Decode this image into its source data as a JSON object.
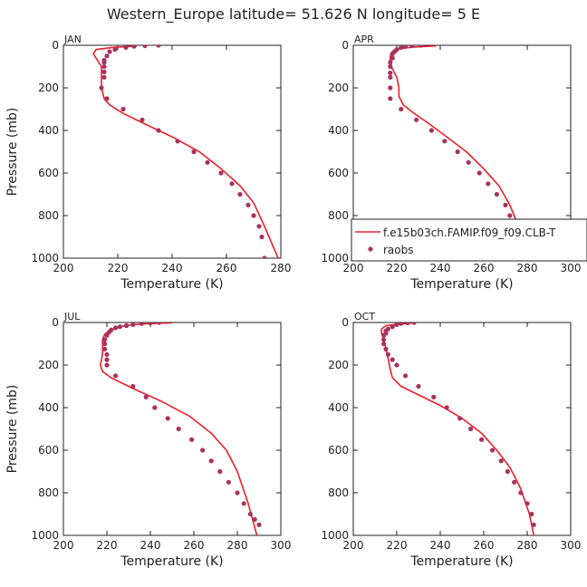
{
  "figure_title": "Western_Europe  latitude= 51.626 N longitude= 5 E",
  "legend": {
    "model_label": "f.e15b03ch.FAMIP.f09_f09.CLB-T",
    "obs_label": "raobs"
  },
  "colors": {
    "model_line": "#e8202a",
    "obs_points": "#a8325e",
    "axis": "#222222"
  },
  "chart_data": [
    {
      "type": "line",
      "panel": "JAN",
      "xlabel": "Temperature (K)",
      "ylabel": "Pressure (mb)",
      "xlim": [
        200,
        280
      ],
      "ylim": [
        1000,
        0
      ],
      "xticks": [
        200,
        220,
        240,
        260,
        280
      ],
      "yticks": [
        0,
        200,
        400,
        600,
        800,
        1000
      ],
      "series": [
        {
          "name": "f.e15b03ch.FAMIP.f09_f09.CLB-T",
          "kind": "line",
          "x": [
            227,
            218,
            212,
            211,
            212,
            214,
            214,
            214,
            215,
            217,
            222,
            230,
            240,
            250,
            258,
            265,
            270,
            274,
            279
          ],
          "y": [
            3,
            10,
            20,
            40,
            60,
            100,
            150,
            200,
            250,
            280,
            320,
            370,
            430,
            500,
            580,
            660,
            740,
            850,
            1000
          ]
        },
        {
          "name": "raobs",
          "kind": "scatter",
          "x": [
            235,
            230,
            226,
            223,
            219,
            217,
            216,
            215,
            215,
            215,
            215,
            215,
            214,
            216,
            222,
            229,
            235,
            242,
            248,
            253,
            258,
            262,
            265,
            268,
            270,
            272,
            273,
            274
          ],
          "y": [
            0,
            2,
            5,
            10,
            20,
            30,
            50,
            70,
            80,
            100,
            125,
            150,
            200,
            250,
            300,
            350,
            400,
            450,
            500,
            550,
            600,
            650,
            700,
            750,
            800,
            850,
            900,
            1000
          ]
        }
      ]
    },
    {
      "type": "line",
      "panel": "APR",
      "xlabel": "Temperature (K)",
      "ylabel": "",
      "xlim": [
        200,
        300
      ],
      "ylim": [
        1000,
        0
      ],
      "xticks": [
        200,
        220,
        240,
        260,
        280,
        300
      ],
      "yticks": [
        0,
        200,
        400,
        600,
        800,
        1000
      ],
      "series": [
        {
          "name": "f.e15b03ch.FAMIP.f09_f09.CLB-T",
          "kind": "line",
          "x": [
            238,
            228,
            222,
            218,
            217,
            217,
            218,
            220,
            221,
            221,
            223,
            228,
            235,
            243,
            252,
            260,
            267,
            272,
            276,
            280
          ],
          "y": [
            3,
            8,
            15,
            30,
            50,
            80,
            110,
            150,
            200,
            240,
            280,
            320,
            370,
            430,
            500,
            580,
            660,
            750,
            850,
            950
          ]
        },
        {
          "name": "raobs",
          "kind": "scatter",
          "x": [
            231,
            227,
            224,
            222,
            220,
            219,
            218,
            218,
            217,
            217,
            217,
            217,
            217,
            217,
            222,
            229,
            236,
            242,
            248,
            253,
            258,
            262,
            266,
            270,
            272,
            274,
            275,
            277,
            280
          ],
          "y": [
            0,
            2,
            5,
            10,
            20,
            30,
            40,
            60,
            80,
            100,
            130,
            150,
            200,
            250,
            300,
            350,
            400,
            450,
            500,
            550,
            600,
            650,
            700,
            750,
            800,
            850,
            900,
            925,
            950
          ]
        }
      ]
    },
    {
      "type": "line",
      "panel": "JUL",
      "xlabel": "Temperature (K)",
      "ylabel": "Pressure (mb)",
      "xlim": [
        200,
        300
      ],
      "ylim": [
        1000,
        0
      ],
      "xticks": [
        200,
        220,
        240,
        260,
        280,
        300
      ],
      "yticks": [
        0,
        200,
        400,
        600,
        800,
        1000
      ],
      "series": [
        {
          "name": "f.e15b03ch.FAMIP.f09_f09.CLB-T",
          "kind": "line",
          "x": [
            250,
            240,
            232,
            226,
            222,
            219,
            218,
            218,
            218,
            217,
            218,
            222,
            232,
            245,
            258,
            268,
            275,
            280,
            285,
            289
          ],
          "y": [
            2,
            5,
            10,
            20,
            35,
            55,
            80,
            110,
            150,
            200,
            230,
            260,
            310,
            370,
            440,
            520,
            600,
            700,
            850,
            1000
          ]
        },
        {
          "name": "raobs",
          "kind": "scatter",
          "x": [
            244,
            240,
            236,
            232,
            229,
            226,
            224,
            222,
            221,
            220,
            219,
            219,
            219,
            220,
            220,
            220,
            224,
            232,
            238,
            242,
            248,
            253,
            259,
            264,
            268,
            272,
            276,
            280,
            283,
            286,
            288,
            290
          ],
          "y": [
            0,
            2,
            5,
            10,
            15,
            20,
            25,
            35,
            45,
            60,
            80,
            100,
            125,
            150,
            175,
            200,
            250,
            300,
            350,
            400,
            450,
            500,
            550,
            600,
            650,
            700,
            750,
            800,
            850,
            900,
            925,
            950
          ]
        }
      ]
    },
    {
      "type": "line",
      "panel": "OCT",
      "xlabel": "Temperature (K)",
      "ylabel": "",
      "xlim": [
        200,
        300
      ],
      "ylim": [
        1000,
        0
      ],
      "xticks": [
        200,
        220,
        240,
        260,
        280,
        300
      ],
      "yticks": [
        0,
        200,
        400,
        600,
        800,
        1000
      ],
      "series": [
        {
          "name": "f.e15b03ch.FAMIP.f09_f09.CLB-T",
          "kind": "line",
          "x": [
            228,
            220,
            215,
            213,
            213,
            214,
            215,
            216,
            217,
            218,
            222,
            230,
            240,
            250,
            259,
            266,
            272,
            277,
            281,
            283
          ],
          "y": [
            2,
            8,
            15,
            30,
            50,
            80,
            120,
            170,
            220,
            260,
            300,
            340,
            390,
            450,
            520,
            600,
            680,
            780,
            900,
            1000
          ]
        },
        {
          "name": "raobs",
          "kind": "scatter",
          "x": [
            228,
            225,
            222,
            220,
            218,
            216,
            215,
            215,
            214,
            214,
            214,
            215,
            216,
            218,
            220,
            224,
            230,
            237,
            243,
            249,
            254,
            259,
            264,
            268,
            271,
            274,
            277,
            280,
            282,
            283
          ],
          "y": [
            0,
            2,
            5,
            10,
            20,
            30,
            40,
            50,
            60,
            80,
            100,
            125,
            150,
            175,
            200,
            250,
            300,
            350,
            400,
            450,
            500,
            550,
            600,
            650,
            700,
            750,
            800,
            850,
            900,
            950
          ]
        }
      ]
    }
  ]
}
